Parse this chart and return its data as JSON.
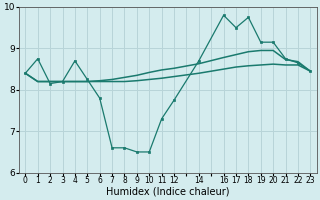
{
  "xlabel": "Humidex (Indice chaleur)",
  "bg_color": "#d4ecee",
  "grid_color": "#b8d4d8",
  "line_color": "#1a7a6e",
  "xlim": [
    -0.5,
    23.5
  ],
  "ylim": [
    6.0,
    10.0
  ],
  "yticks": [
    6,
    7,
    8,
    9,
    10
  ],
  "xtick_positions": [
    0,
    1,
    2,
    3,
    4,
    5,
    6,
    7,
    8,
    9,
    10,
    11,
    12,
    13,
    14,
    15,
    16,
    17,
    18,
    19,
    20,
    21,
    22,
    23
  ],
  "xtick_labels": [
    "0",
    "1",
    "2",
    "3",
    "4",
    "5",
    "6",
    "7",
    "8",
    "9",
    "10",
    "11",
    "12",
    "",
    "14",
    "",
    "16",
    "17",
    "18",
    "19",
    "20",
    "21",
    "22",
    "23"
  ],
  "series1_x": [
    0,
    1,
    2,
    3,
    4,
    5,
    6,
    7,
    8,
    9,
    10,
    11,
    12,
    14,
    16,
    17,
    18,
    19,
    20,
    21,
    22,
    23
  ],
  "series1_y": [
    8.4,
    8.75,
    8.15,
    8.2,
    8.7,
    8.25,
    7.8,
    6.6,
    6.6,
    6.5,
    6.5,
    7.3,
    7.75,
    8.7,
    9.8,
    9.5,
    9.75,
    9.15,
    9.15,
    8.75,
    8.65,
    8.45
  ],
  "series2_x": [
    0,
    1,
    2,
    3,
    4,
    5,
    6,
    7,
    8,
    9,
    10,
    11,
    12,
    14,
    16,
    17,
    18,
    19,
    20,
    21,
    22,
    23
  ],
  "series2_y": [
    8.4,
    8.2,
    8.2,
    8.2,
    8.2,
    8.2,
    8.22,
    8.25,
    8.3,
    8.35,
    8.42,
    8.48,
    8.52,
    8.63,
    8.78,
    8.85,
    8.92,
    8.95,
    8.95,
    8.73,
    8.68,
    8.45
  ],
  "series3_x": [
    0,
    1,
    2,
    3,
    4,
    5,
    6,
    7,
    8,
    9,
    10,
    11,
    12,
    14,
    16,
    17,
    18,
    19,
    20,
    21,
    22,
    23
  ],
  "series3_y": [
    8.4,
    8.2,
    8.2,
    8.2,
    8.2,
    8.2,
    8.2,
    8.2,
    8.2,
    8.22,
    8.25,
    8.28,
    8.32,
    8.4,
    8.5,
    8.55,
    8.58,
    8.6,
    8.62,
    8.6,
    8.6,
    8.45
  ]
}
